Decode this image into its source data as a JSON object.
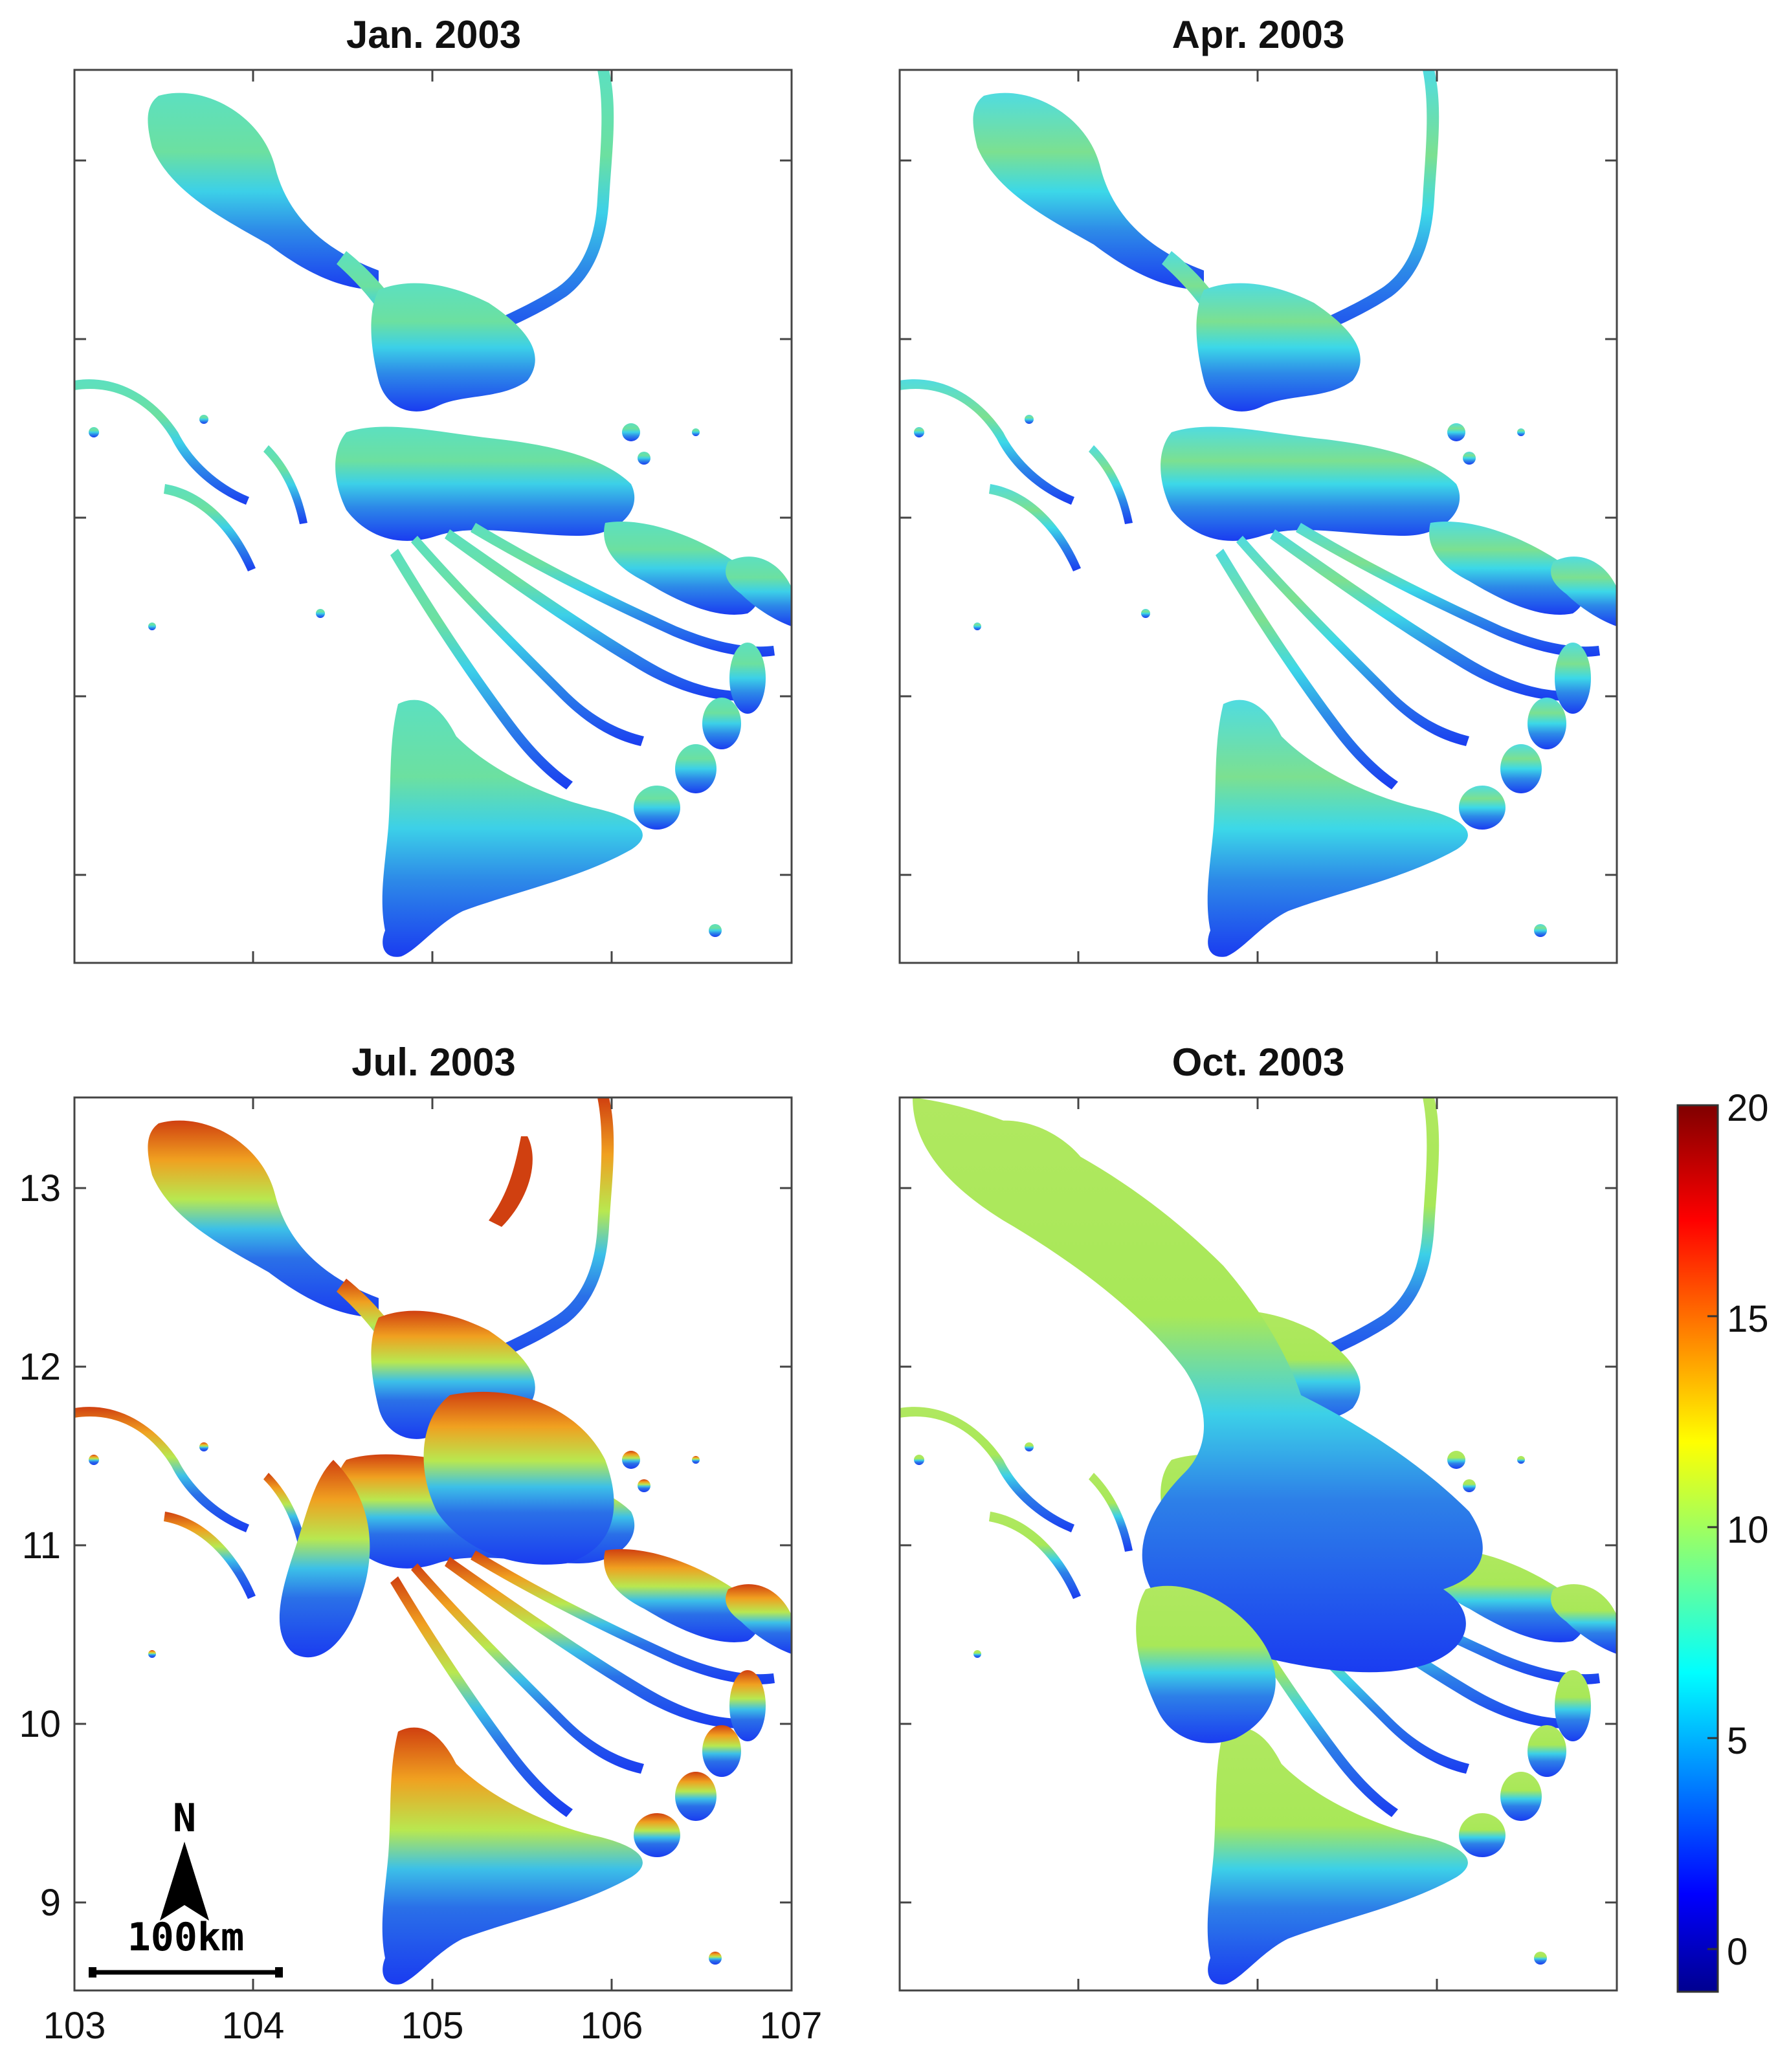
{
  "panels": [
    {
      "id": "jan",
      "title": "Jan. 2003"
    },
    {
      "id": "apr",
      "title": "Apr. 2003"
    },
    {
      "id": "jul",
      "title": "Jul. 2003"
    },
    {
      "id": "oct",
      "title": "Oct. 2003"
    }
  ],
  "axes": {
    "x_ticks": [
      "103",
      "104",
      "105",
      "106",
      "107"
    ],
    "y_ticks": [
      "13",
      "12",
      "11",
      "10",
      "9"
    ],
    "x_range": [
      103,
      107
    ],
    "y_range": [
      8.5,
      13.5
    ]
  },
  "colorbar": {
    "ticks": [
      "20",
      "15",
      "10",
      "5",
      "0"
    ],
    "range": [
      -1,
      20
    ],
    "colormap": "jet",
    "colors": [
      "#00008f",
      "#0000ff",
      "#00ffff",
      "#ffff00",
      "#ff0000",
      "#800000"
    ]
  },
  "scale_bar": {
    "label": "100km"
  },
  "north_arrow": {
    "label": "N"
  },
  "colors": {
    "deep_blue": "#1a3cf0",
    "blue": "#2d7fe8",
    "cyan": "#3cd0e8",
    "green": "#7ce878",
    "yellow": "#e8e030",
    "orange": "#f08a20",
    "red": "#c82010"
  }
}
